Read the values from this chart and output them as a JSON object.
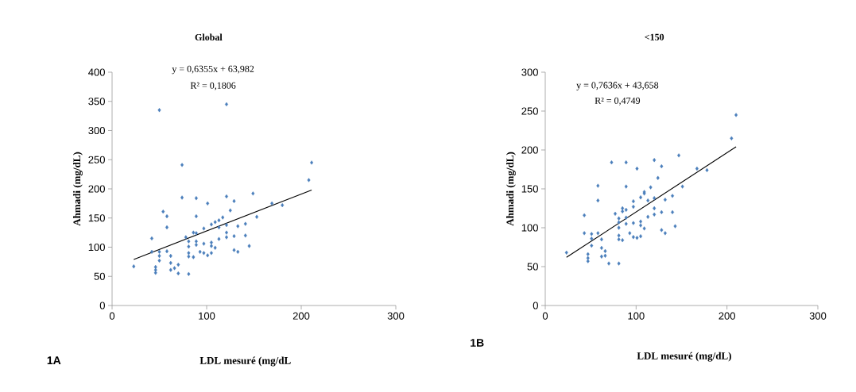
{
  "chart_data": [
    {
      "type": "scatter",
      "title": "Global",
      "xlabel": "LDL mesuré (mg/dL",
      "ylabel": "Ahmadi (mg/dL)",
      "xlim": [
        0,
        300
      ],
      "ylim": [
        0,
        400
      ],
      "xticks": [
        0,
        100,
        200,
        300
      ],
      "yticks": [
        0,
        50,
        100,
        150,
        200,
        250,
        300,
        350,
        400
      ],
      "annotations": [
        "y = 0,6355x + 63,982",
        "R² = 0,1806",
        "1A"
      ],
      "series": [
        {
          "marker": "diamond",
          "color": "#4a7ebb",
          "x": [
            22.9,
            50,
            121,
            74,
            211,
            208,
            42,
            42,
            46,
            46,
            46,
            50,
            50,
            50,
            54,
            58,
            58,
            58,
            62,
            62,
            62,
            66,
            70,
            70,
            74,
            78,
            81,
            81,
            81,
            81,
            81,
            86,
            86,
            89,
            89,
            89,
            89,
            89,
            93,
            97,
            97,
            97,
            101,
            101,
            105,
            105,
            105,
            105,
            109,
            109,
            113,
            113,
            113,
            117,
            121,
            121,
            121,
            121,
            125,
            129,
            129,
            129,
            133,
            133,
            141,
            141,
            145,
            149,
            153,
            169,
            180
          ],
          "values": [
            67,
            335,
            345,
            241,
            245,
            215,
            115,
            92,
            66,
            61,
            56,
            92,
            85,
            77,
            161,
            153,
            134,
            93,
            85,
            73,
            61,
            64,
            70,
            55,
            185,
            117,
            110,
            101,
            90,
            84,
            54,
            125,
            83,
            184,
            153,
            124,
            110,
            104,
            92,
            132,
            106,
            90,
            175,
            86,
            139,
            108,
            102,
            90,
            143,
            99,
            146,
            134,
            114,
            151,
            187,
            138,
            125,
            117,
            163,
            179,
            119,
            95,
            136,
            92,
            140,
            120,
            102,
            192,
            152,
            175,
            172
          ]
        },
        {
          "type": "line",
          "marker": "none",
          "color": "#000000",
          "x": [
            22.9,
            211
          ],
          "values": [
            79,
            198
          ]
        }
      ]
    },
    {
      "type": "scatter",
      "title": "<150",
      "xlabel": "LDL mesuré (mg/dL)",
      "ylabel": "Ahmadi (mg/dL)",
      "xlim": [
        0,
        300
      ],
      "ylim": [
        0,
        300
      ],
      "xticks": [
        0,
        100,
        200,
        300
      ],
      "yticks": [
        0,
        50,
        100,
        150,
        200,
        250,
        300
      ],
      "annotations": [
        "y = 0,7636x + 43,658",
        "R² = 0,4749",
        "1B"
      ],
      "series": [
        {
          "marker": "diamond",
          "color": "#4a7ebb",
          "x": [
            23.4,
            43,
            43,
            47,
            47,
            47,
            51,
            51,
            51,
            58,
            58,
            58,
            62,
            62,
            62,
            66,
            66,
            70,
            73,
            77,
            81,
            81,
            81,
            81,
            81,
            81,
            85,
            85,
            85,
            89,
            89,
            89,
            89,
            89,
            93,
            97,
            97,
            97,
            97,
            101,
            101,
            105,
            105,
            105,
            105,
            109,
            109,
            109,
            113,
            113,
            116,
            120,
            120,
            120,
            120,
            124,
            128,
            128,
            128,
            132,
            132,
            140,
            140,
            143,
            147,
            151,
            167,
            178,
            205,
            210
          ],
          "values": [
            68,
            116,
            93,
            66,
            61,
            57,
            92,
            86,
            77,
            154,
            135,
            93,
            85,
            74,
            63,
            64,
            70,
            54,
            184,
            118,
            112,
            107,
            100,
            90,
            85,
            54,
            125,
            121,
            84,
            184,
            153,
            123,
            113,
            105,
            93,
            134,
            127,
            106,
            88,
            176,
            87,
            139,
            108,
            103,
            89,
            146,
            144,
            99,
            135,
            114,
            152,
            187,
            138,
            125,
            117,
            164,
            179,
            120,
            97,
            136,
            93,
            141,
            120,
            102,
            193,
            153,
            176,
            174,
            215,
            245
          ]
        },
        {
          "type": "line",
          "marker": "none",
          "color": "#000000",
          "x": [
            23.4,
            210
          ],
          "values": [
            62,
            204
          ]
        }
      ]
    }
  ]
}
